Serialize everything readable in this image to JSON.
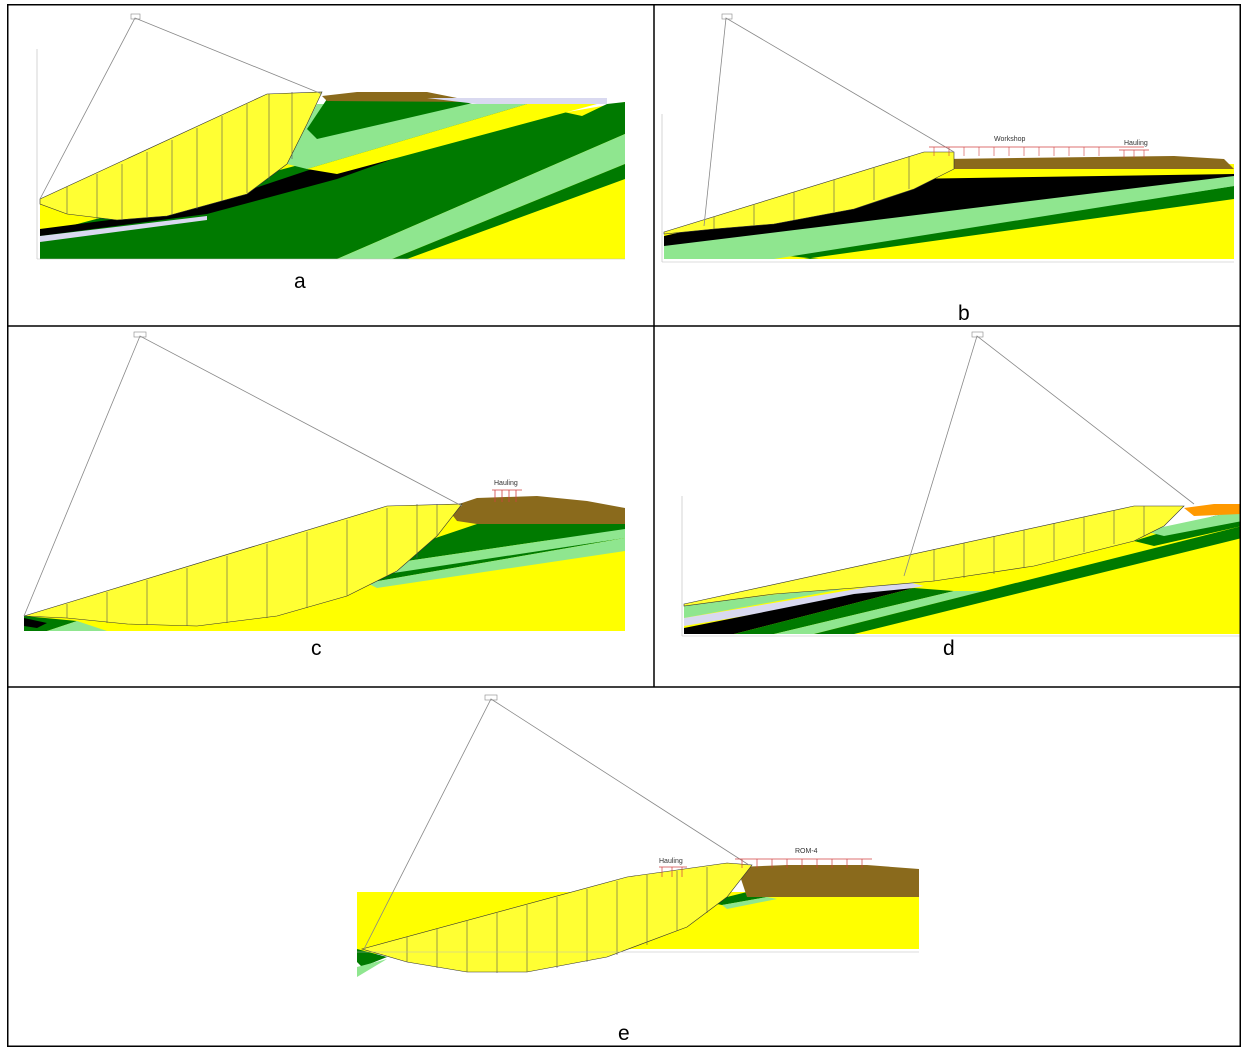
{
  "panels": [
    {
      "id": "a",
      "caption": "a",
      "annotations": []
    },
    {
      "id": "b",
      "caption": "b",
      "annotations": [
        "Workshop",
        "Hauling"
      ]
    },
    {
      "id": "c",
      "caption": "c",
      "annotations": [
        "Hauling"
      ]
    },
    {
      "id": "d",
      "caption": "d",
      "annotations": []
    },
    {
      "id": "e",
      "caption": "e",
      "annotations": [
        "Hauling",
        "ROM-4"
      ]
    }
  ],
  "colors": {
    "soil_yellow": "#ffff00",
    "soil_dark_green": "#007a00",
    "soil_light_green": "#8fe68f",
    "coal_black": "#000000",
    "overburden_brown": "#8a6a1c",
    "slice_fill": "#ffff33",
    "surcharge_red": "#d04040",
    "water_lilac": "#d9d9f0",
    "accent_orange": "#ff9900"
  },
  "icons": [
    "slip-surface-icon",
    "surcharge-load-icon"
  ]
}
